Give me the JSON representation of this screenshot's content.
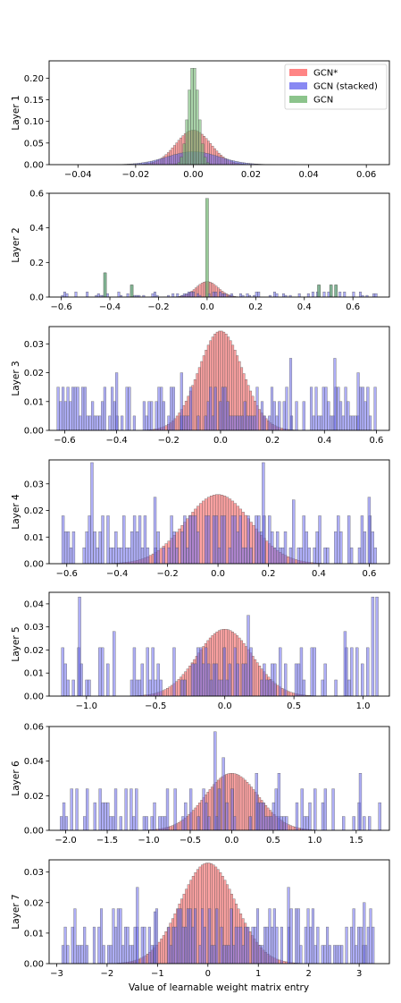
{
  "figure": {
    "xlabel": "Value of learnable weight matrix entry",
    "legend": {
      "placement": "top-right of first panel",
      "entries": [
        {
          "name": "GCN*",
          "color": "#ff6666"
        },
        {
          "name": "GCN (stacked)",
          "color": "#6b6bf0"
        },
        {
          "name": "GCN",
          "color": "#6fb56f"
        }
      ]
    }
  },
  "chart_data": [
    {
      "type": "bar",
      "ylabel": "Layer 1",
      "xlim": [
        -0.05,
        0.068
      ],
      "ylim": [
        0,
        0.24
      ],
      "xticks": [
        -0.04,
        -0.02,
        0.0,
        0.02,
        0.04,
        0.06
      ],
      "xtick_labels": [
        "−0.04",
        "−0.02",
        "0.00",
        "0.02",
        "0.04",
        "0.06"
      ],
      "yticks": [
        0,
        0.05,
        0.1,
        0.15,
        0.2
      ],
      "ytick_labels": [
        "0.00",
        "0.05",
        "0.10",
        "0.15",
        "0.20"
      ],
      "series": [
        {
          "name": "GCN*",
          "kind": "gaussian",
          "mean": 0.0,
          "std": 0.006,
          "peak": 0.08,
          "range": [
            -0.045,
            0.065
          ],
          "bins": 150
        },
        {
          "name": "GCN (stacked)",
          "kind": "gaussian",
          "mean": 0.0,
          "std": 0.009,
          "peak": 0.03,
          "range": [
            -0.045,
            0.065
          ],
          "bins": 150
        },
        {
          "name": "GCN",
          "kind": "gaussian",
          "mean": 0.0,
          "std": 0.0018,
          "peak": 0.23,
          "range": [
            -0.01,
            0.01
          ],
          "bins": 22
        }
      ]
    },
    {
      "type": "bar",
      "ylabel": "Layer 2",
      "xlim": [
        -0.65,
        0.75
      ],
      "ylim": [
        0,
        0.6
      ],
      "xticks": [
        -0.6,
        -0.4,
        -0.2,
        0.0,
        0.2,
        0.4,
        0.6
      ],
      "xtick_labels": [
        "−0.6",
        "−0.4",
        "−0.2",
        "0.0",
        "0.2",
        "0.4",
        "0.6"
      ],
      "yticks": [
        0,
        0.2,
        0.4,
        0.6
      ],
      "ytick_labels": [
        "0.0",
        "0.2",
        "0.4",
        "0.6"
      ],
      "series": [
        {
          "name": "GCN*",
          "kind": "gaussian",
          "mean": 0.0,
          "std": 0.045,
          "peak": 0.09,
          "range": [
            -0.25,
            0.25
          ],
          "bins": 60
        },
        {
          "name": "GCN (stacked)",
          "kind": "sparse",
          "seed": 2,
          "range": [
            -0.6,
            0.7
          ],
          "bins": 140,
          "prob": 0.5,
          "levels": [
            0.01,
            0.02,
            0.03
          ],
          "spikes": [
            [
              -0.42,
              0.14
            ],
            [
              -0.31,
              0.07
            ],
            [
              0.46,
              0.07
            ],
            [
              0.51,
              0.07
            ],
            [
              0.53,
              0.07
            ]
          ]
        },
        {
          "name": "GCN",
          "kind": "spikes",
          "spikes": [
            [
              0.0,
              0.57
            ],
            [
              -0.42,
              0.14
            ],
            [
              -0.31,
              0.07
            ],
            [
              0.46,
              0.07
            ],
            [
              0.51,
              0.07
            ],
            [
              0.53,
              0.07
            ]
          ],
          "width": 0.012
        }
      ]
    },
    {
      "type": "bar",
      "ylabel": "Layer 3",
      "xlim": [
        -0.66,
        0.65
      ],
      "ylim": [
        0,
        0.036
      ],
      "xticks": [
        -0.6,
        -0.4,
        -0.2,
        0.0,
        0.2,
        0.4,
        0.6
      ],
      "xtick_labels": [
        "−0.6",
        "−0.4",
        "−0.2",
        "0.0",
        "0.2",
        "0.4",
        "0.6"
      ],
      "yticks": [
        0,
        0.01,
        0.02,
        0.03
      ],
      "ytick_labels": [
        "0.00",
        "0.01",
        "0.02",
        "0.03"
      ],
      "series": [
        {
          "name": "GCN*",
          "kind": "gaussian",
          "mean": 0.0,
          "std": 0.085,
          "peak": 0.0345,
          "range": [
            -0.3,
            0.3
          ],
          "bins": 70
        },
        {
          "name": "GCN (stacked)",
          "kind": "sparse",
          "seed": 3,
          "range": [
            -0.63,
            0.6
          ],
          "bins": 130,
          "prob": 0.75,
          "levels": [
            0.005,
            0.01,
            0.015
          ],
          "spikes": [
            [
              -0.4,
              0.02
            ],
            [
              -0.15,
              0.02
            ],
            [
              0.27,
              0.025
            ],
            [
              0.44,
              0.025
            ],
            [
              0.53,
              0.02
            ]
          ]
        }
      ]
    },
    {
      "type": "bar",
      "ylabel": "Layer 4",
      "xlim": [
        -0.67,
        0.68
      ],
      "ylim": [
        0,
        0.039
      ],
      "xticks": [
        -0.6,
        -0.4,
        -0.2,
        0.0,
        0.2,
        0.4,
        0.6
      ],
      "xtick_labels": [
        "−0.6",
        "−0.4",
        "−0.2",
        "0.0",
        "0.2",
        "0.4",
        "0.6"
      ],
      "yticks": [
        0,
        0.01,
        0.02,
        0.03
      ],
      "ytick_labels": [
        "0.00",
        "0.01",
        "0.02",
        "0.03"
      ],
      "series": [
        {
          "name": "GCN*",
          "kind": "gaussian",
          "mean": 0.0,
          "std": 0.13,
          "peak": 0.026,
          "range": [
            -0.42,
            0.42
          ],
          "bins": 80
        },
        {
          "name": "GCN (stacked)",
          "kind": "sparse",
          "seed": 4,
          "range": [
            -0.62,
            0.64
          ],
          "bins": 120,
          "prob": 0.7,
          "levels": [
            0.006,
            0.012,
            0.018
          ],
          "spikes": [
            [
              -0.5,
              0.038
            ],
            [
              0.18,
              0.038
            ],
            [
              -0.25,
              0.025
            ],
            [
              0.3,
              0.024
            ],
            [
              0.6,
              0.025
            ]
          ]
        }
      ]
    },
    {
      "type": "bar",
      "ylabel": "Layer 5",
      "xlim": [
        -1.27,
        1.19
      ],
      "ylim": [
        0,
        0.045
      ],
      "xticks": [
        -1.0,
        -0.5,
        0.0,
        0.5,
        1.0
      ],
      "xtick_labels": [
        "−1.0",
        "−0.5",
        "0.0",
        "0.5",
        "1.0"
      ],
      "yticks": [
        0,
        0.01,
        0.02,
        0.03,
        0.04
      ],
      "ytick_labels": [
        "0.00",
        "0.01",
        "0.02",
        "0.03",
        "0.04"
      ],
      "series": [
        {
          "name": "GCN*",
          "kind": "gaussian",
          "mean": 0.0,
          "std": 0.2,
          "peak": 0.029,
          "range": [
            -0.65,
            0.65
          ],
          "bins": 80
        },
        {
          "name": "GCN (stacked)",
          "kind": "sparse",
          "seed": 5,
          "range": [
            -1.2,
            1.1
          ],
          "bins": 120,
          "prob": 0.65,
          "levels": [
            0.007,
            0.014,
            0.021
          ],
          "spikes": [
            [
              -1.05,
              0.043
            ],
            [
              1.07,
              0.043
            ],
            [
              1.1,
              0.043
            ],
            [
              0.17,
              0.035
            ],
            [
              -0.8,
              0.028
            ],
            [
              0.87,
              0.028
            ]
          ]
        }
      ]
    },
    {
      "type": "bar",
      "ylabel": "Layer 6",
      "xlim": [
        -2.2,
        1.9
      ],
      "ylim": [
        0,
        0.06
      ],
      "xticks": [
        -2.0,
        -1.5,
        -1.0,
        -0.5,
        0.0,
        0.5,
        1.0,
        1.5
      ],
      "xtick_labels": [
        "−2.0",
        "−1.5",
        "−1.0",
        "−0.5",
        "0.0",
        "0.5",
        "1.0",
        "1.5"
      ],
      "yticks": [
        0,
        0.02,
        0.04,
        0.06
      ],
      "ytick_labels": [
        "0.00",
        "0.02",
        "0.04",
        "0.06"
      ],
      "series": [
        {
          "name": "GCN*",
          "kind": "gaussian",
          "mean": 0.0,
          "std": 0.32,
          "peak": 0.033,
          "range": [
            -1.0,
            1.0
          ],
          "bins": 80
        },
        {
          "name": "GCN (stacked)",
          "kind": "sparse",
          "seed": 6,
          "range": [
            -2.1,
            1.8
          ],
          "bins": 125,
          "prob": 0.6,
          "levels": [
            0.008,
            0.016,
            0.024
          ],
          "spikes": [
            [
              -0.2,
              0.057
            ],
            [
              -0.1,
              0.042
            ],
            [
              0.57,
              0.033
            ],
            [
              1.55,
              0.033
            ],
            [
              0.3,
              0.033
            ]
          ]
        }
      ]
    },
    {
      "type": "bar",
      "ylabel": "Layer 7",
      "xlim": [
        -3.15,
        3.6
      ],
      "ylim": [
        0,
        0.034
      ],
      "xticks": [
        -3,
        -2,
        -1,
        0,
        1,
        2,
        3
      ],
      "xtick_labels": [
        "−3",
        "−2",
        "−1",
        "0",
        "1",
        "2",
        "3"
      ],
      "yticks": [
        0,
        0.01,
        0.02,
        0.03
      ],
      "ytick_labels": [
        "0.00",
        "0.01",
        "0.02",
        "0.03"
      ],
      "series": [
        {
          "name": "GCN*",
          "kind": "gaussian",
          "mean": 0.0,
          "std": 0.55,
          "peak": 0.033,
          "range": [
            -1.8,
            1.8
          ],
          "bins": 80
        },
        {
          "name": "GCN (stacked)",
          "kind": "sparse",
          "seed": 7,
          "range": [
            -2.9,
            3.3
          ],
          "bins": 130,
          "prob": 0.8,
          "levels": [
            0.006,
            0.012,
            0.018
          ],
          "spikes": [
            [
              -1.4,
              0.025
            ],
            [
              1.6,
              0.025
            ],
            [
              3.1,
              0.02
            ],
            [
              -1.05,
              0.017
            ]
          ]
        }
      ]
    }
  ]
}
